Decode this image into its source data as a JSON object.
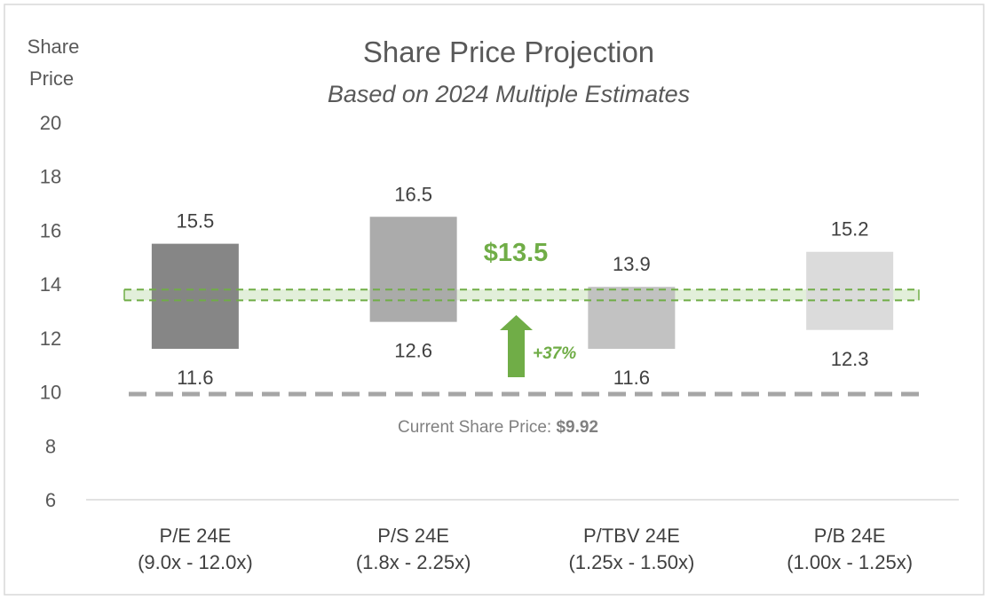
{
  "chart_data": {
    "type": "floating-bar",
    "title": "Share Price Projection",
    "subtitle": "Based on 2024 Multiple Estimates",
    "ylabel": "Share Price",
    "ylim": [
      6,
      20
    ],
    "yticks": [
      6,
      8,
      10,
      12,
      14,
      16,
      18,
      20
    ],
    "grid": false,
    "categories": [
      {
        "name": "P/E 24E",
        "range": "(9.0x - 12.0x)"
      },
      {
        "name": "P/S 24E",
        "range": "(1.8x - 2.25x)"
      },
      {
        "name": "P/TBV 24E",
        "range": "(1.25x - 1.50x)"
      },
      {
        "name": "P/B 24E",
        "range": "(1.00x - 1.25x)"
      }
    ],
    "low": [
      11.6,
      12.6,
      11.6,
      12.3
    ],
    "high": [
      15.5,
      16.5,
      13.9,
      15.2
    ],
    "low_labels": [
      "11.6",
      "12.6",
      "11.6",
      "12.3"
    ],
    "high_labels": [
      "15.5",
      "16.5",
      "13.9",
      "15.2"
    ],
    "bar_colors": [
      "#7f7f7f",
      "#a6a6a6",
      "#bfbfbf",
      "#d9d9d9"
    ],
    "target": {
      "label": "$13.5",
      "band": [
        13.4,
        13.8
      ],
      "color": "#70ad47",
      "fill": "#e2efda"
    },
    "current": {
      "value": 9.92,
      "label_prefix": "Current Share Price: ",
      "label_value": "$9.92",
      "color": "#a6a6a6"
    },
    "upside": {
      "label": "+37%",
      "color": "#70ad47"
    }
  }
}
